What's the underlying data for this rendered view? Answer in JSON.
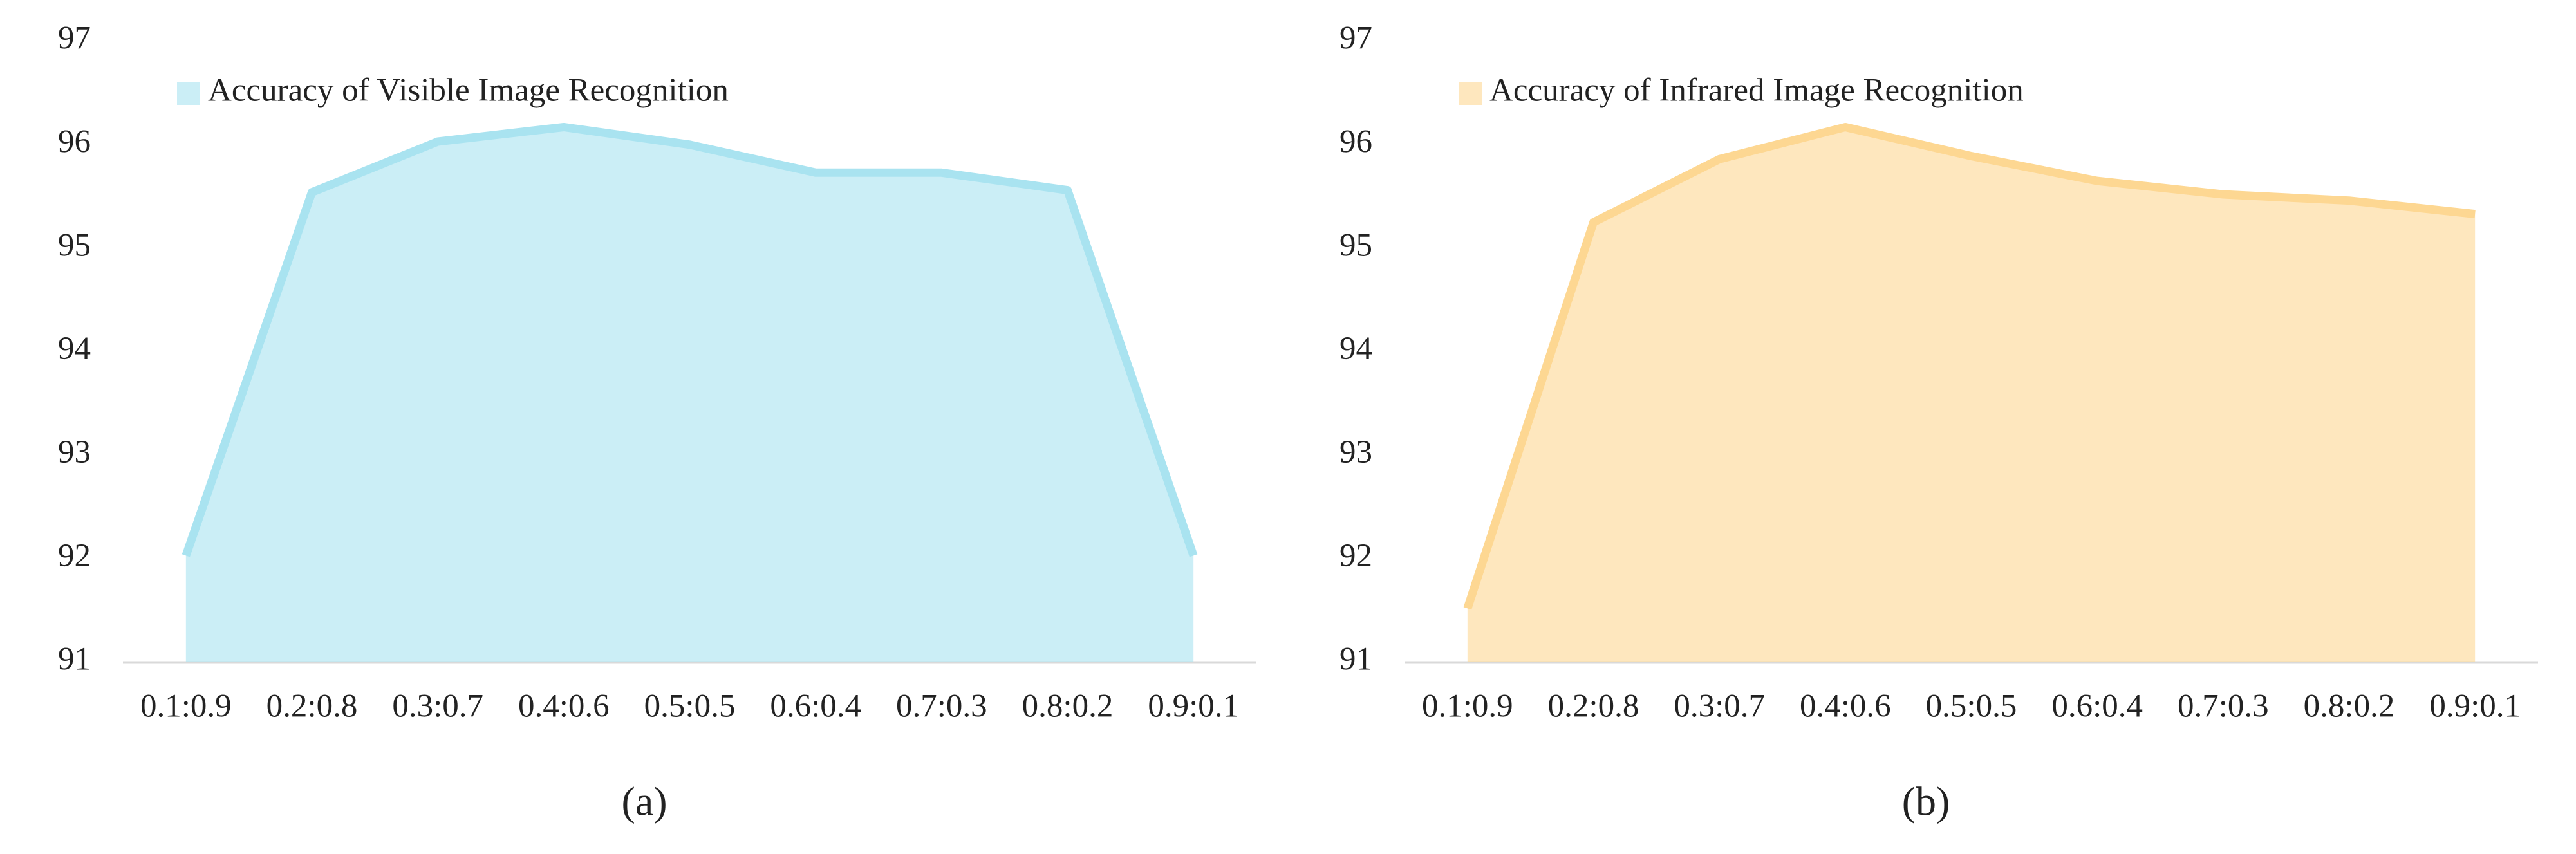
{
  "chart_data": [
    {
      "type": "area",
      "caption": "(a)",
      "categories": [
        "0.1:0.9",
        "0.2:0.8",
        "0.3:0.7",
        "0.4:0.6",
        "0.5:0.5",
        "0.6:0.4",
        "0.7:0.3",
        "0.8:0.2",
        "0.9:0.1"
      ],
      "series": [
        {
          "name": "Accuracy of Visible Image Recognition",
          "color": "#a9e3f0",
          "values": [
            92.03,
            95.54,
            96.03,
            96.17,
            96.0,
            95.73,
            95.73,
            95.56,
            92.03
          ]
        }
      ],
      "ylim": [
        91,
        97
      ],
      "yticks": [
        91,
        92,
        93,
        94,
        95,
        96,
        97
      ],
      "grid": false,
      "legend": "top-left"
    },
    {
      "type": "area",
      "caption": "(b)",
      "categories": [
        "0.1:0.9",
        "0.2:0.8",
        "0.3:0.7",
        "0.4:0.6",
        "0.5:0.5",
        "0.6:0.4",
        "0.7:0.3",
        "0.8:0.2",
        "0.9:0.1"
      ],
      "series": [
        {
          "name": "Accuracy of Infrared Image Recognition",
          "color": "#fdd792",
          "values": [
            91.52,
            95.25,
            95.86,
            96.17,
            95.89,
            95.65,
            95.52,
            95.46,
            95.33
          ]
        }
      ],
      "ylim": [
        91,
        97
      ],
      "yticks": [
        91,
        92,
        93,
        94,
        95,
        96,
        97
      ],
      "grid": false,
      "legend": "top-left"
    }
  ]
}
